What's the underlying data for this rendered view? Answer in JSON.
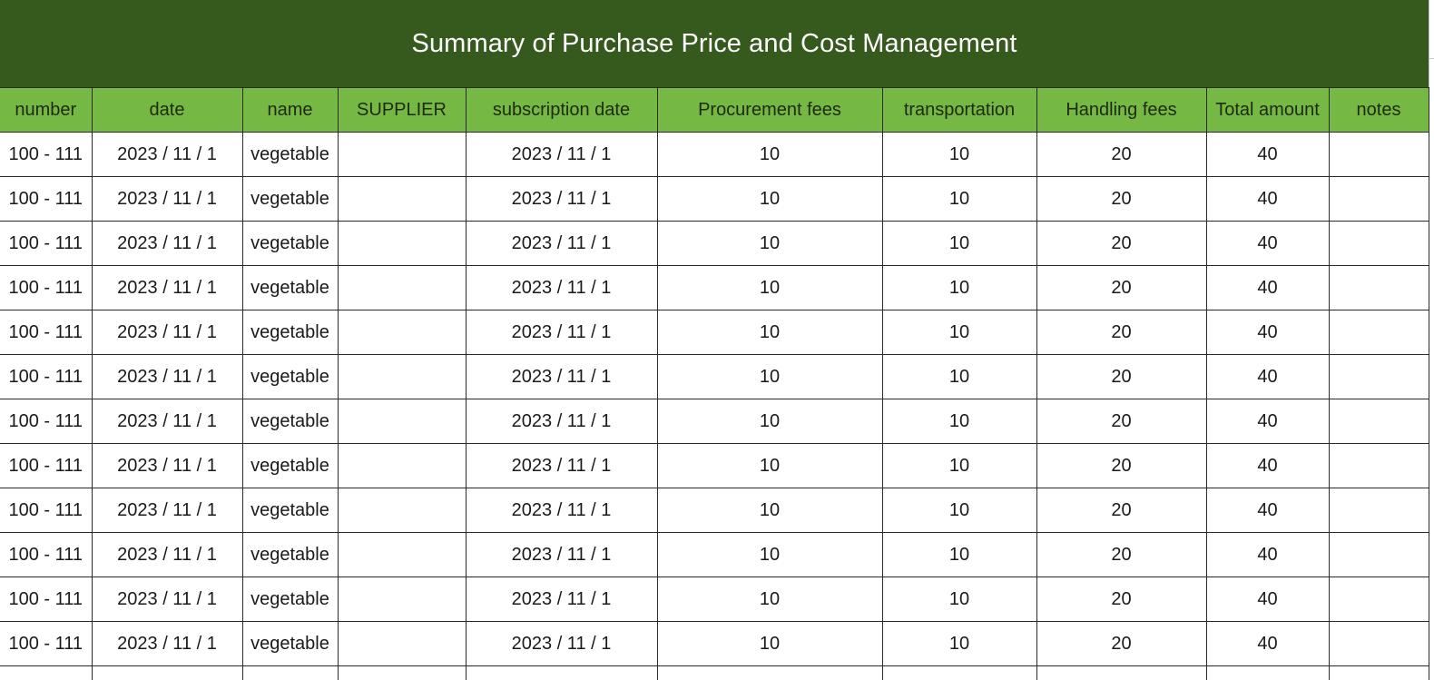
{
  "title": "Summary of Purchase Price and Cost Management",
  "colors": {
    "title_bg": "#365a1d",
    "header_bg": "#75b843",
    "border": "#2b2b2b"
  },
  "columns": [
    "number",
    "date",
    "name",
    "SUPPLIER",
    "subscription date",
    "Procurement fees",
    "transportation",
    "Handling fees",
    "Total amount",
    "notes"
  ],
  "rows": [
    [
      "100 - 111",
      "2023 / 11 / 1",
      "vegetable",
      "",
      "2023 / 11 / 1",
      "10",
      "10",
      "20",
      "40",
      ""
    ],
    [
      "100 - 111",
      "2023 / 11 / 1",
      "vegetable",
      "",
      "2023 / 11 / 1",
      "10",
      "10",
      "20",
      "40",
      ""
    ],
    [
      "100 - 111",
      "2023 / 11 / 1",
      "vegetable",
      "",
      "2023 / 11 / 1",
      "10",
      "10",
      "20",
      "40",
      ""
    ],
    [
      "100 - 111",
      "2023 / 11 / 1",
      "vegetable",
      "",
      "2023 / 11 / 1",
      "10",
      "10",
      "20",
      "40",
      ""
    ],
    [
      "100 - 111",
      "2023 / 11 / 1",
      "vegetable",
      "",
      "2023 / 11 / 1",
      "10",
      "10",
      "20",
      "40",
      ""
    ],
    [
      "100 - 111",
      "2023 / 11 / 1",
      "vegetable",
      "",
      "2023 / 11 / 1",
      "10",
      "10",
      "20",
      "40",
      ""
    ],
    [
      "100 - 111",
      "2023 / 11 / 1",
      "vegetable",
      "",
      "2023 / 11 / 1",
      "10",
      "10",
      "20",
      "40",
      ""
    ],
    [
      "100 - 111",
      "2023 / 11 / 1",
      "vegetable",
      "",
      "2023 / 11 / 1",
      "10",
      "10",
      "20",
      "40",
      ""
    ],
    [
      "100 - 111",
      "2023 / 11 / 1",
      "vegetable",
      "",
      "2023 / 11 / 1",
      "10",
      "10",
      "20",
      "40",
      ""
    ],
    [
      "100 - 111",
      "2023 / 11 / 1",
      "vegetable",
      "",
      "2023 / 11 / 1",
      "10",
      "10",
      "20",
      "40",
      ""
    ],
    [
      "100 - 111",
      "2023 / 11 / 1",
      "vegetable",
      "",
      "2023 / 11 / 1",
      "10",
      "10",
      "20",
      "40",
      ""
    ],
    [
      "100 - 111",
      "2023 / 11 / 1",
      "vegetable",
      "",
      "2023 / 11 / 1",
      "10",
      "10",
      "20",
      "40",
      ""
    ],
    [
      "",
      "",
      "",
      "",
      "",
      "",
      "",
      "",
      "",
      ""
    ]
  ]
}
